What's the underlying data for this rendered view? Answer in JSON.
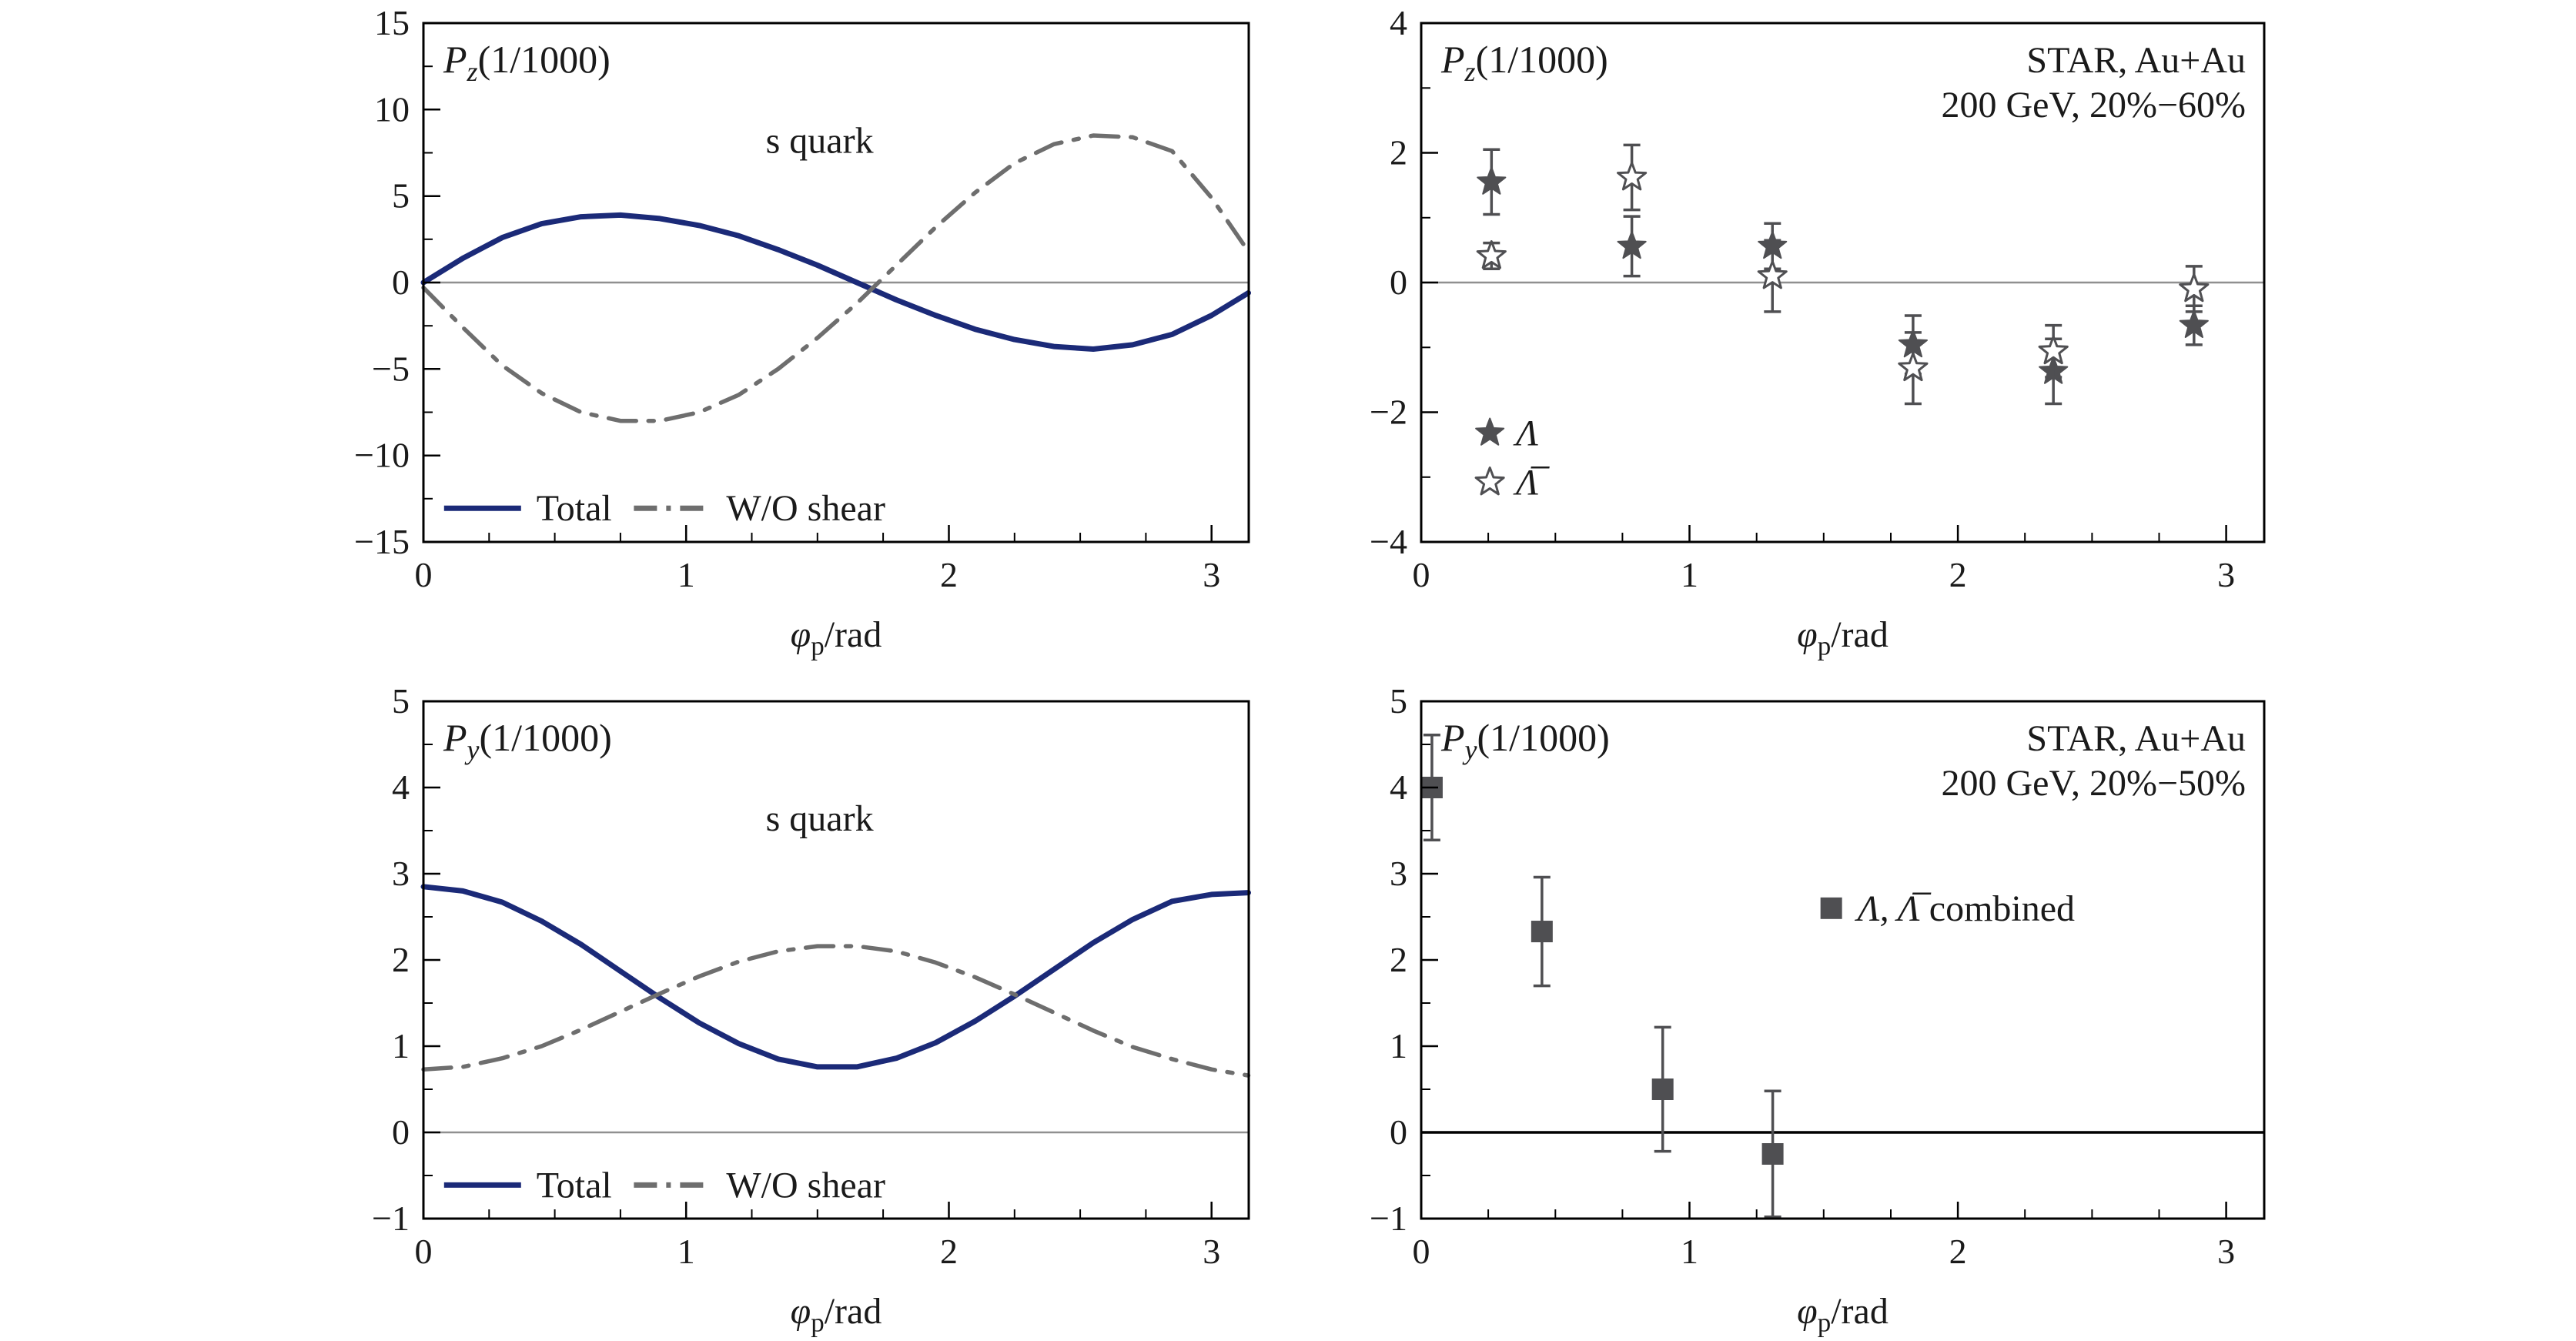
{
  "colors": {
    "total_line": "#1b2a78",
    "shear_line": "#6e6e6e",
    "marker": "#4f4f52",
    "zero_line": "#909090",
    "frame": "#000000",
    "text": "#1a1a1a"
  },
  "chart_data": [
    {
      "id": "pz-model",
      "type": "line",
      "title_segments": [
        {
          "t": "P",
          "i": true
        },
        {
          "t": "z",
          "i": true,
          "sub": true
        },
        {
          "t": "(1/1000)"
        }
      ],
      "annotation": {
        "text": "s quark",
        "fx": 0.48,
        "fy": 0.25
      },
      "xlabel_segments": [
        {
          "t": "φ",
          "i": true
        },
        {
          "t": "p",
          "sub": true
        },
        {
          "t": "/rad"
        }
      ],
      "xlim": [
        0,
        3.1416
      ],
      "ylim": [
        -15,
        15
      ],
      "xticks": [
        0,
        1,
        2,
        3
      ],
      "yticks": [
        -15,
        -10,
        -5,
        0,
        5,
        10,
        15
      ],
      "x_minor_step": 0.25,
      "y_minor_step": 2.5,
      "zero_line": true,
      "series": [
        {
          "name": "Total",
          "color": "total_line",
          "dash": "solid",
          "width": 7,
          "x": [
            0,
            0.15,
            0.3,
            0.45,
            0.6,
            0.75,
            0.9,
            1.05,
            1.2,
            1.35,
            1.5,
            1.65,
            1.8,
            1.95,
            2.1,
            2.25,
            2.4,
            2.55,
            2.7,
            2.85,
            3.0,
            3.14
          ],
          "y": [
            0,
            1.4,
            2.6,
            3.4,
            3.8,
            3.9,
            3.7,
            3.3,
            2.7,
            1.9,
            1.0,
            0.0,
            -1.0,
            -1.9,
            -2.7,
            -3.3,
            -3.7,
            -3.85,
            -3.6,
            -3.0,
            -1.9,
            -0.6
          ]
        },
        {
          "name": "W/O shear",
          "color": "shear_line",
          "dash": "dashdot",
          "width": 5.5,
          "x": [
            0,
            0.15,
            0.3,
            0.45,
            0.6,
            0.75,
            0.9,
            1.05,
            1.2,
            1.35,
            1.5,
            1.65,
            1.8,
            1.95,
            2.1,
            2.25,
            2.4,
            2.55,
            2.7,
            2.85,
            3.0,
            3.14
          ],
          "y": [
            -0.3,
            -2.6,
            -4.8,
            -6.4,
            -7.5,
            -8.0,
            -8.0,
            -7.5,
            -6.5,
            -5.0,
            -3.2,
            -1.2,
            1.0,
            3.2,
            5.2,
            6.9,
            8.0,
            8.5,
            8.4,
            7.6,
            4.9,
            1.8
          ]
        }
      ],
      "legend": {
        "items": [
          {
            "fx": 0.025,
            "fy": 0.935,
            "swatch": "line",
            "dash": "solid",
            "color": "total_line",
            "segments": [
              {
                "t": "Total"
              }
            ]
          },
          {
            "fx": 0.255,
            "fy": 0.935,
            "swatch": "line",
            "dash": "dashdot",
            "color": "shear_line",
            "segments": [
              {
                "t": "W/O shear"
              }
            ]
          }
        ]
      }
    },
    {
      "id": "pz-data",
      "type": "scatter",
      "title_segments": [
        {
          "t": "P",
          "i": true
        },
        {
          "t": "z",
          "i": true,
          "sub": true
        },
        {
          "t": "(1/1000)"
        }
      ],
      "header_lines": [
        "STAR, Au+Au",
        "200 GeV, 20%−60%"
      ],
      "xlabel_segments": [
        {
          "t": "φ",
          "i": true
        },
        {
          "t": "p",
          "sub": true
        },
        {
          "t": "/rad"
        }
      ],
      "xlim": [
        0,
        3.1416
      ],
      "ylim": [
        -4,
        4
      ],
      "xticks": [
        0,
        1,
        2,
        3
      ],
      "yticks": [
        -4,
        -2,
        0,
        2,
        4
      ],
      "x_minor_step": 0.25,
      "y_minor_step": 1,
      "zero_line": true,
      "series": [
        {
          "name": "Λ",
          "marker": "star-filled",
          "x": [
            0.262,
            0.785,
            1.309,
            1.833,
            2.356,
            2.88
          ],
          "y": [
            1.55,
            0.56,
            0.56,
            -0.96,
            -1.37,
            -0.66
          ],
          "yerr": [
            0.5,
            0.46,
            0.35,
            0.45,
            0.5,
            0.3
          ]
        },
        {
          "name": "Λ̅",
          "marker": "star-open",
          "x": [
            0.262,
            0.785,
            1.309,
            1.833,
            2.356,
            2.88
          ],
          "y": [
            0.41,
            1.62,
            0.1,
            -1.32,
            -1.06,
            -0.1
          ],
          "yerr": [
            0.2,
            0.5,
            0.55,
            0.55,
            0.4,
            0.35
          ]
        }
      ],
      "legend": {
        "items": [
          {
            "fx": 0.065,
            "fy": 0.79,
            "swatch": "star-filled",
            "segments": [
              {
                "t": "Λ",
                "i": true
              }
            ]
          },
          {
            "fx": 0.065,
            "fy": 0.885,
            "swatch": "star-open",
            "segments": [
              {
                "t": "Λ̅",
                "i": true
              }
            ]
          }
        ]
      }
    },
    {
      "id": "py-model",
      "type": "line",
      "title_segments": [
        {
          "t": "P",
          "i": true
        },
        {
          "t": "y",
          "i": true,
          "sub": true
        },
        {
          "t": "(1/1000)"
        }
      ],
      "annotation": {
        "text": "s quark",
        "fx": 0.48,
        "fy": 0.25
      },
      "xlabel_segments": [
        {
          "t": "φ",
          "i": true
        },
        {
          "t": "p",
          "sub": true
        },
        {
          "t": "/rad"
        }
      ],
      "xlim": [
        0,
        3.1416
      ],
      "ylim": [
        -1,
        5
      ],
      "xticks": [
        0,
        1,
        2,
        3
      ],
      "yticks": [
        -1,
        0,
        1,
        2,
        3,
        4,
        5
      ],
      "x_minor_step": 0.25,
      "y_minor_step": 0.5,
      "zero_line": true,
      "series": [
        {
          "name": "Total",
          "color": "total_line",
          "dash": "solid",
          "width": 7,
          "x": [
            0,
            0.15,
            0.3,
            0.45,
            0.6,
            0.75,
            0.9,
            1.05,
            1.2,
            1.35,
            1.5,
            1.65,
            1.8,
            1.95,
            2.1,
            2.25,
            2.4,
            2.55,
            2.7,
            2.85,
            3.0,
            3.14
          ],
          "y": [
            2.85,
            2.8,
            2.67,
            2.45,
            2.18,
            1.87,
            1.56,
            1.27,
            1.03,
            0.85,
            0.76,
            0.76,
            0.86,
            1.04,
            1.29,
            1.58,
            1.89,
            2.2,
            2.47,
            2.68,
            2.76,
            2.78
          ]
        },
        {
          "name": "W/O shear",
          "color": "shear_line",
          "dash": "dashdot",
          "width": 5.5,
          "x": [
            0,
            0.15,
            0.3,
            0.45,
            0.6,
            0.75,
            0.9,
            1.05,
            1.2,
            1.35,
            1.5,
            1.65,
            1.8,
            1.95,
            2.1,
            2.25,
            2.4,
            2.55,
            2.7,
            2.85,
            3.0,
            3.14
          ],
          "y": [
            0.73,
            0.76,
            0.86,
            1.0,
            1.19,
            1.4,
            1.61,
            1.81,
            1.98,
            2.1,
            2.16,
            2.16,
            2.1,
            1.97,
            1.8,
            1.6,
            1.39,
            1.18,
            0.99,
            0.85,
            0.73,
            0.66
          ]
        }
      ],
      "legend": {
        "items": [
          {
            "fx": 0.025,
            "fy": 0.935,
            "swatch": "line",
            "dash": "solid",
            "color": "total_line",
            "segments": [
              {
                "t": "Total"
              }
            ]
          },
          {
            "fx": 0.255,
            "fy": 0.935,
            "swatch": "line",
            "dash": "dashdot",
            "color": "shear_line",
            "segments": [
              {
                "t": "W/O shear"
              }
            ]
          }
        ]
      }
    },
    {
      "id": "py-data",
      "type": "scatter",
      "title_segments": [
        {
          "t": "P",
          "i": true
        },
        {
          "t": "y",
          "i": true,
          "sub": true
        },
        {
          "t": "(1/1000)"
        }
      ],
      "header_lines": [
        "STAR, Au+Au",
        "200 GeV, 20%−50%"
      ],
      "xlabel_segments": [
        {
          "t": "φ",
          "i": true
        },
        {
          "t": "p",
          "sub": true
        },
        {
          "t": "/rad"
        }
      ],
      "xlim": [
        0,
        3.1416
      ],
      "ylim": [
        -1,
        5
      ],
      "xticks": [
        0,
        1,
        2,
        3
      ],
      "yticks": [
        -1,
        0,
        1,
        2,
        3,
        4,
        5
      ],
      "x_minor_step": 0.25,
      "y_minor_step": 0.5,
      "zero_line": true,
      "zero_color": "#000000",
      "zero_width": 3.5,
      "series": [
        {
          "name": "Λ, Λ̅ combined",
          "marker": "square",
          "x": [
            0.04,
            0.45,
            0.9,
            1.31
          ],
          "y": [
            4.0,
            2.33,
            0.5,
            -0.25
          ],
          "yerr": [
            0.61,
            0.63,
            0.72,
            0.73
          ]
        }
      ],
      "legend": {
        "items": [
          {
            "fx": 0.47,
            "fy": 0.4,
            "swatch": "square",
            "segments": [
              {
                "t": "Λ, Λ̅",
                "i": true
              },
              {
                "t": " combined"
              }
            ]
          }
        ]
      }
    }
  ]
}
